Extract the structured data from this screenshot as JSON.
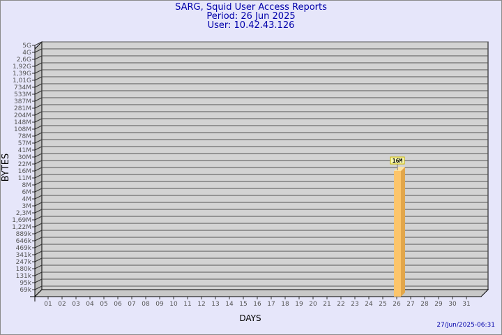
{
  "chart_data": {
    "type": "bar",
    "title": "SARG, Squid User Access Reports",
    "subtitle_period": "Period: 26 Jun 2025",
    "subtitle_user": "User: 10.42.43.126",
    "xlabel": "DAYS",
    "ylabel": "BYTES",
    "categories": [
      "01",
      "02",
      "03",
      "04",
      "05",
      "06",
      "07",
      "08",
      "09",
      "10",
      "11",
      "12",
      "13",
      "14",
      "15",
      "16",
      "17",
      "18",
      "19",
      "20",
      "21",
      "22",
      "23",
      "24",
      "25",
      "26",
      "27",
      "28",
      "29",
      "30",
      "31"
    ],
    "values": [
      0,
      0,
      0,
      0,
      0,
      0,
      0,
      0,
      0,
      0,
      0,
      0,
      0,
      0,
      0,
      0,
      0,
      0,
      0,
      0,
      0,
      0,
      0,
      0,
      0,
      16000000,
      0,
      0,
      0,
      0,
      0
    ],
    "data_labels": {
      "26": "16M"
    },
    "y_ticks": [
      "5G",
      "4G",
      "2,6G",
      "1,92G",
      "1,39G",
      "1,01G",
      "734M",
      "533M",
      "387M",
      "281M",
      "204M",
      "148M",
      "108M",
      "78M",
      "57M",
      "41M",
      "30M",
      "22M",
      "16M",
      "11M",
      "8M",
      "6M",
      "4M",
      "3M",
      "2,3M",
      "1,69M",
      "1,22M",
      "889k",
      "646k",
      "469k",
      "341k",
      "247k",
      "180k",
      "131k",
      "95k",
      "69k"
    ],
    "y_scale": "log",
    "grid": true,
    "colors": {
      "bar_front": "#fcc56b",
      "bar_side": "#e2a64a",
      "bar_top": "#fde2a0",
      "wall": "#d3d3d3",
      "background": "#e6e6fa",
      "title": "#0000aa"
    }
  },
  "timestamp": "27/Jun/2025-06:31"
}
